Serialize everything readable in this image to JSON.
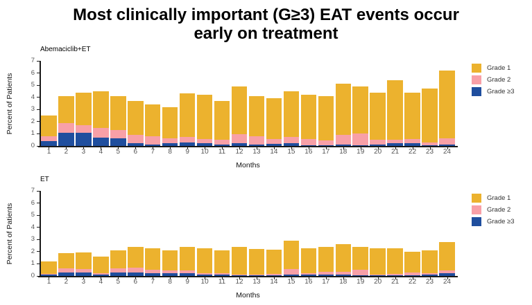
{
  "title": {
    "line1": "Most clinically important (G≥3) EAT events occur",
    "line2": "early on treatment"
  },
  "colors": {
    "grade1": "#ECB22E",
    "grade2": "#F8A0A7",
    "grade3": "#1F4E9E",
    "axis": "#1A1A1A",
    "tick_label": "#555555"
  },
  "legend": {
    "position": "right",
    "items": [
      {
        "label": "Grade 1",
        "color_key": "grade1"
      },
      {
        "label": "Grade 2",
        "color_key": "grade2"
      },
      {
        "label": "Grade ≥3",
        "color_key": "grade3"
      }
    ]
  },
  "chart_data": [
    {
      "type": "bar",
      "stacked": true,
      "title": "Abemaciclib+ET",
      "xlabel": "Months",
      "ylabel": "Percent of Patients",
      "ylim": [
        0,
        7
      ],
      "yticks": [
        0,
        1,
        2,
        3,
        4,
        5,
        6,
        7
      ],
      "grid": false,
      "legend_position": "right",
      "categories": [
        1,
        2,
        3,
        4,
        5,
        6,
        7,
        8,
        9,
        10,
        11,
        12,
        13,
        14,
        15,
        16,
        17,
        18,
        19,
        20,
        21,
        22,
        23,
        24
      ],
      "series": [
        {
          "name": "Grade ≥3",
          "color_key": "grade3",
          "values": [
            0.4,
            1.1,
            1.1,
            0.7,
            0.6,
            0.2,
            0.1,
            0.2,
            0.3,
            0.2,
            0.1,
            0.2,
            0.1,
            0.15,
            0.2,
            0.05,
            0.05,
            0.1,
            0.05,
            0.1,
            0.2,
            0.25,
            0.05,
            0.1
          ]
        },
        {
          "name": "Grade 2",
          "color_key": "grade2",
          "values": [
            0.4,
            0.8,
            0.6,
            0.8,
            0.7,
            0.7,
            0.7,
            0.4,
            0.45,
            0.35,
            0.4,
            0.75,
            0.7,
            0.4,
            0.55,
            0.5,
            0.4,
            0.8,
            0.95,
            0.4,
            0.3,
            0.3,
            0.25,
            0.55
          ]
        },
        {
          "name": "Grade 1",
          "color_key": "grade1",
          "values": [
            1.7,
            2.2,
            2.7,
            3.0,
            2.8,
            2.8,
            2.6,
            2.6,
            3.55,
            3.65,
            3.2,
            3.95,
            3.3,
            3.35,
            3.75,
            3.65,
            3.65,
            4.2,
            3.9,
            3.9,
            4.9,
            3.85,
            4.4,
            5.55
          ]
        }
      ]
    },
    {
      "type": "bar",
      "stacked": true,
      "title": "ET",
      "xlabel": "Months",
      "ylabel": "Percent of Patients",
      "ylim": [
        0,
        7
      ],
      "yticks": [
        0,
        1,
        2,
        3,
        4,
        5,
        6,
        7
      ],
      "grid": false,
      "legend_position": "right",
      "categories": [
        1,
        2,
        3,
        4,
        5,
        6,
        7,
        8,
        9,
        10,
        11,
        12,
        13,
        14,
        15,
        16,
        17,
        18,
        19,
        20,
        21,
        22,
        23,
        24
      ],
      "series": [
        {
          "name": "Grade ≥3",
          "color_key": "grade3",
          "values": [
            0.1,
            0.3,
            0.3,
            0.1,
            0.3,
            0.3,
            0.2,
            0.2,
            0.2,
            0.1,
            0.1,
            0.05,
            0.05,
            0.05,
            0.1,
            0.1,
            0.1,
            0.1,
            0.05,
            0.05,
            0.05,
            0.05,
            0.1,
            0.25
          ]
        },
        {
          "name": "Grade 2",
          "color_key": "grade2",
          "values": [
            0.05,
            0.3,
            0.25,
            0.1,
            0.35,
            0.4,
            0.3,
            0.25,
            0.25,
            0.1,
            0.1,
            0.05,
            0.05,
            0.1,
            0.45,
            0.1,
            0.25,
            0.25,
            0.45,
            0.05,
            0.1,
            0.25,
            0.1,
            0.2
          ]
        },
        {
          "name": "Grade 1",
          "color_key": "grade1",
          "values": [
            1.05,
            1.3,
            1.4,
            1.4,
            1.45,
            1.7,
            1.75,
            1.65,
            1.95,
            2.05,
            1.9,
            2.3,
            2.1,
            2.0,
            2.35,
            2.1,
            2.05,
            2.25,
            1.9,
            2.2,
            2.15,
            1.7,
            1.9,
            2.35
          ]
        }
      ]
    }
  ]
}
